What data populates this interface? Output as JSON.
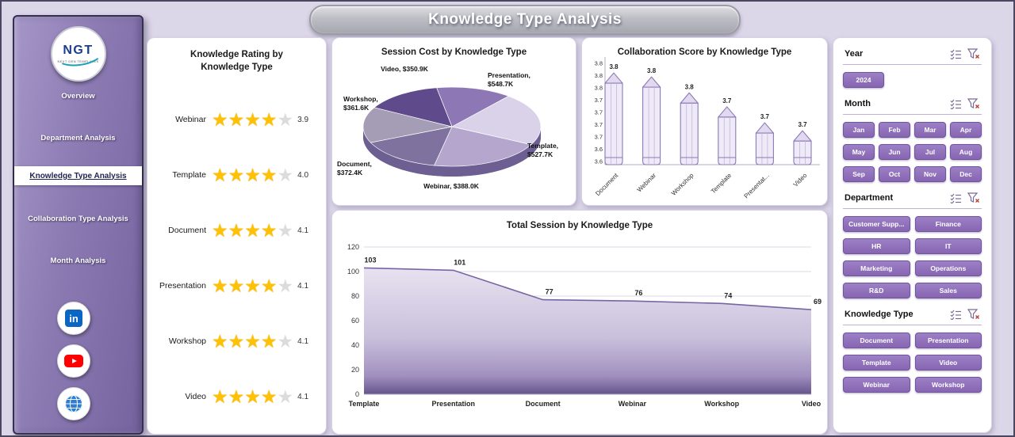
{
  "header": {
    "title": "Knowledge Type Analysis"
  },
  "sidebar": {
    "logo_text": "NGT",
    "logo_subtext": "NEXT GEN TEMPLATES",
    "items": [
      {
        "label": "Overview",
        "active": false
      },
      {
        "label": "Department Analysis",
        "active": false
      },
      {
        "label": "Knowledge Type Analysis",
        "active": true
      },
      {
        "label": "Collaboration Type Analysis",
        "active": false
      },
      {
        "label": "Month Analysis",
        "active": false
      }
    ],
    "social": [
      {
        "name": "linkedin"
      },
      {
        "name": "youtube"
      },
      {
        "name": "website"
      }
    ]
  },
  "chart_data": [
    {
      "type": "table",
      "title": "Knowledge Rating by Knowledge Type",
      "categories": [
        "Webinar",
        "Template",
        "Document",
        "Presentation",
        "Workshop",
        "Video"
      ],
      "values": [
        3.9,
        4.0,
        4.1,
        4.1,
        4.1,
        4.1
      ],
      "value_labels": [
        "3.9",
        "4.0",
        "4.1",
        "4.1",
        "4.1",
        "4.1"
      ],
      "stars_filled": 4,
      "stars_total": 5,
      "star_color": "#FFC104"
    },
    {
      "type": "pie",
      "title": "Session Cost by Knowledge Type",
      "slices": [
        {
          "label": "Video",
          "value": 350.9,
          "value_text": "$350.9K",
          "color": "#8d77b4"
        },
        {
          "label": "Presentation",
          "value": 548.7,
          "value_text": "$548.7K",
          "color": "#d9d2e9"
        },
        {
          "label": "Template",
          "value": 527.7,
          "value_text": "$527.7K",
          "color": "#b4a6cd"
        },
        {
          "label": "Webinar",
          "value": 388.0,
          "value_text": "$388.0K",
          "color": "#7f729f"
        },
        {
          "label": "Document",
          "value": 372.4,
          "value_text": "$372.4K",
          "color": "#a59cb5"
        },
        {
          "label": "Workshop",
          "value": 361.6,
          "value_text": "$361.6K",
          "color": "#5f4b8b"
        }
      ],
      "legend": "none"
    },
    {
      "type": "bar",
      "bar_style": "pencil",
      "title": "Collaboration Score by Knowledge Type",
      "categories": [
        "Document",
        "Webinar",
        "Workshop",
        "Template",
        "Presentat...",
        "Video"
      ],
      "values": [
        3.8,
        3.8,
        3.8,
        3.7,
        3.7,
        3.7
      ],
      "value_labels": [
        "3.8",
        "3.8",
        "3.8",
        "3.7",
        "3.7",
        "3.7"
      ],
      "y_ticks": [
        "3.8",
        "3.8",
        "3.8",
        "3.7",
        "3.7",
        "3.7",
        "3.7",
        "3.6",
        "3.6"
      ],
      "ylim": [
        3.6,
        3.85
      ]
    },
    {
      "type": "area",
      "title": "Total Session by Knowledge Type",
      "categories": [
        "Template",
        "Presentation",
        "Document",
        "Webinar",
        "Workshop",
        "Video"
      ],
      "values": [
        103,
        101,
        77,
        76,
        74,
        69
      ],
      "y_ticks": [
        0,
        20,
        40,
        60,
        80,
        100,
        120
      ],
      "ylim": [
        0,
        120
      ],
      "line_color": "#7765a3"
    }
  ],
  "filters": {
    "year": {
      "label": "Year",
      "options": [
        "2024"
      ]
    },
    "month": {
      "label": "Month",
      "options": [
        "Jan",
        "Feb",
        "Mar",
        "Apr",
        "May",
        "Jun",
        "Jul",
        "Aug",
        "Sep",
        "Oct",
        "Nov",
        "Dec"
      ]
    },
    "department": {
      "label": "Department",
      "options": [
        "Customer Supp...",
        "Finance",
        "HR",
        "IT",
        "Marketing",
        "Operations",
        "R&D",
        "Sales"
      ]
    },
    "knowledge_type": {
      "label": "Knowledge Type",
      "options": [
        "Document",
        "Presentation",
        "Template",
        "Video",
        "Webinar",
        "Workshop"
      ]
    }
  },
  "colors": {
    "accent": "#8b6fb5",
    "star": "#FFC104",
    "chart_line": "#7765a3"
  }
}
